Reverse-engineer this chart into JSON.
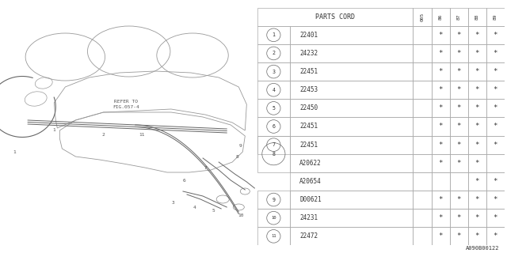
{
  "bg_color": "#ffffff",
  "figure_code": "A090B00122",
  "line_color": "#aaaaaa",
  "text_color": "#333333",
  "wire_color": "#777777",
  "year_headers": [
    "005",
    "86",
    "87",
    "88",
    "89"
  ],
  "rows": [
    {
      "num": "1",
      "part": "22401",
      "stars": [
        0,
        1,
        1,
        1,
        1
      ]
    },
    {
      "num": "2",
      "part": "24232",
      "stars": [
        0,
        1,
        1,
        1,
        1
      ]
    },
    {
      "num": "3",
      "part": "22451",
      "stars": [
        0,
        1,
        1,
        1,
        1
      ]
    },
    {
      "num": "4",
      "part": "22453",
      "stars": [
        0,
        1,
        1,
        1,
        1
      ]
    },
    {
      "num": "5",
      "part": "22450",
      "stars": [
        0,
        1,
        1,
        1,
        1
      ]
    },
    {
      "num": "6",
      "part": "22451",
      "stars": [
        0,
        1,
        1,
        1,
        1
      ]
    },
    {
      "num": "7",
      "part": "22451",
      "stars": [
        0,
        1,
        1,
        1,
        1
      ]
    },
    {
      "num": "8",
      "part": "A20622",
      "stars": [
        0,
        1,
        1,
        1,
        0
      ],
      "sub": {
        "part": "A20654",
        "stars": [
          0,
          0,
          0,
          1,
          1
        ]
      }
    },
    {
      "num": "9",
      "part": "D00621",
      "stars": [
        0,
        1,
        1,
        1,
        1
      ]
    },
    {
      "num": "10",
      "part": "24231",
      "stars": [
        0,
        1,
        1,
        1,
        1
      ]
    },
    {
      "num": "11",
      "part": "22472",
      "stars": [
        0,
        1,
        1,
        1,
        1
      ]
    }
  ]
}
